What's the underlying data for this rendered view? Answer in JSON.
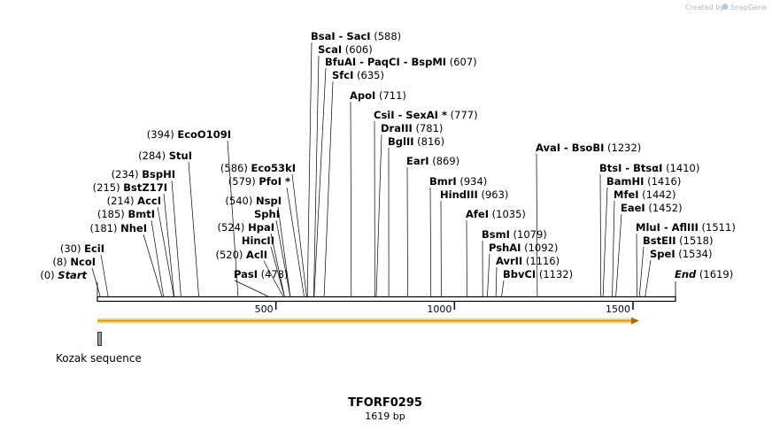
{
  "watermark": "Created by",
  "brand": "SnapGene",
  "sequence": {
    "name": "TFORF0295",
    "length_label": "1619 bp",
    "length": 1619
  },
  "ticks": [
    {
      "value": 500,
      "label": "500"
    },
    {
      "value": 1000,
      "label": "1000"
    },
    {
      "value": 1500,
      "label": "1500"
    }
  ],
  "feature": {
    "name": "Kozak sequence"
  },
  "orf": {
    "start": 1,
    "end": 1619
  },
  "sites": [
    {
      "name": "Start",
      "pos": 0,
      "pos_label": "(0)",
      "italic": true
    },
    {
      "name": "NcoI",
      "pos": 8,
      "pos_label": "(8)"
    },
    {
      "name": "EciI",
      "pos": 30,
      "pos_label": "(30)"
    },
    {
      "name": "NheI",
      "pos": 181,
      "pos_label": "(181)"
    },
    {
      "name": "BmtI",
      "pos": 185,
      "pos_label": "(185)"
    },
    {
      "name": "AccI",
      "pos": 214,
      "pos_label": "(214)"
    },
    {
      "name": "BstZ17I",
      "pos": 215,
      "pos_label": "(215)"
    },
    {
      "name": "BspHI",
      "pos": 234,
      "pos_label": "(234)"
    },
    {
      "name": "StuI",
      "pos": 284,
      "pos_label": "(284)"
    },
    {
      "name": "EcoO109I",
      "pos": 394,
      "pos_label": "(394)"
    },
    {
      "name": "PasI",
      "pos": 478,
      "pos_label": "(478)"
    },
    {
      "name": "AclI",
      "pos": 520,
      "pos_label": "(520)"
    },
    {
      "name": "HincII",
      "pos": 524,
      "pos_label": ""
    },
    {
      "name": "HpaI",
      "pos": 524,
      "pos_label": "(524)"
    },
    {
      "name": "SphI",
      "pos": 540,
      "pos_label": ""
    },
    {
      "name": "NspI",
      "pos": 540,
      "pos_label": "(540)"
    },
    {
      "name": "PfoI *",
      "pos": 579,
      "pos_label": "(579)"
    },
    {
      "name": "Eco53kI",
      "pos": 586,
      "pos_label": "(586)"
    },
    {
      "name": "BsaI  -  SacI",
      "pos": 588,
      "pos_label": "(588)"
    },
    {
      "name": "ScaI",
      "pos": 606,
      "pos_label": "(606)"
    },
    {
      "name": "BfuAI  -  PaqCI  -  BspMI",
      "pos": 607,
      "pos_label": "(607)"
    },
    {
      "name": "SfcI",
      "pos": 635,
      "pos_label": "(635)"
    },
    {
      "name": "ApoI",
      "pos": 711,
      "pos_label": "(711)"
    },
    {
      "name": "CsiI  -  SexAI *",
      "pos": 777,
      "pos_label": "(777)"
    },
    {
      "name": "DraIII",
      "pos": 781,
      "pos_label": "(781)"
    },
    {
      "name": "BglII",
      "pos": 816,
      "pos_label": "(816)"
    },
    {
      "name": "EarI",
      "pos": 869,
      "pos_label": "(869)"
    },
    {
      "name": "BmrI",
      "pos": 934,
      "pos_label": "(934)"
    },
    {
      "name": "HindIII",
      "pos": 963,
      "pos_label": "(963)"
    },
    {
      "name": "AfeI",
      "pos": 1035,
      "pos_label": "(1035)"
    },
    {
      "name": "BsmI",
      "pos": 1079,
      "pos_label": "(1079)"
    },
    {
      "name": "PshAI",
      "pos": 1092,
      "pos_label": "(1092)"
    },
    {
      "name": "AvrII",
      "pos": 1116,
      "pos_label": "(1116)"
    },
    {
      "name": "BbvCI",
      "pos": 1132,
      "pos_label": "(1132)"
    },
    {
      "name": "AvaI  -  BsoBI",
      "pos": 1232,
      "pos_label": "(1232)"
    },
    {
      "name": "BtsI  -  BtsαI",
      "pos": 1410,
      "pos_label": "(1410)"
    },
    {
      "name": "BamHI",
      "pos": 1416,
      "pos_label": "(1416)"
    },
    {
      "name": "MfeI",
      "pos": 1442,
      "pos_label": "(1442)"
    },
    {
      "name": "EaeI",
      "pos": 1452,
      "pos_label": "(1452)"
    },
    {
      "name": "MluI  -  AflIII",
      "pos": 1511,
      "pos_label": "(1511)"
    },
    {
      "name": "BstEII",
      "pos": 1518,
      "pos_label": "(1518)"
    },
    {
      "name": "SpeI",
      "pos": 1534,
      "pos_label": "(1534)"
    },
    {
      "name": "End",
      "pos": 1619,
      "pos_label": "(1619)",
      "italic": true
    }
  ]
}
